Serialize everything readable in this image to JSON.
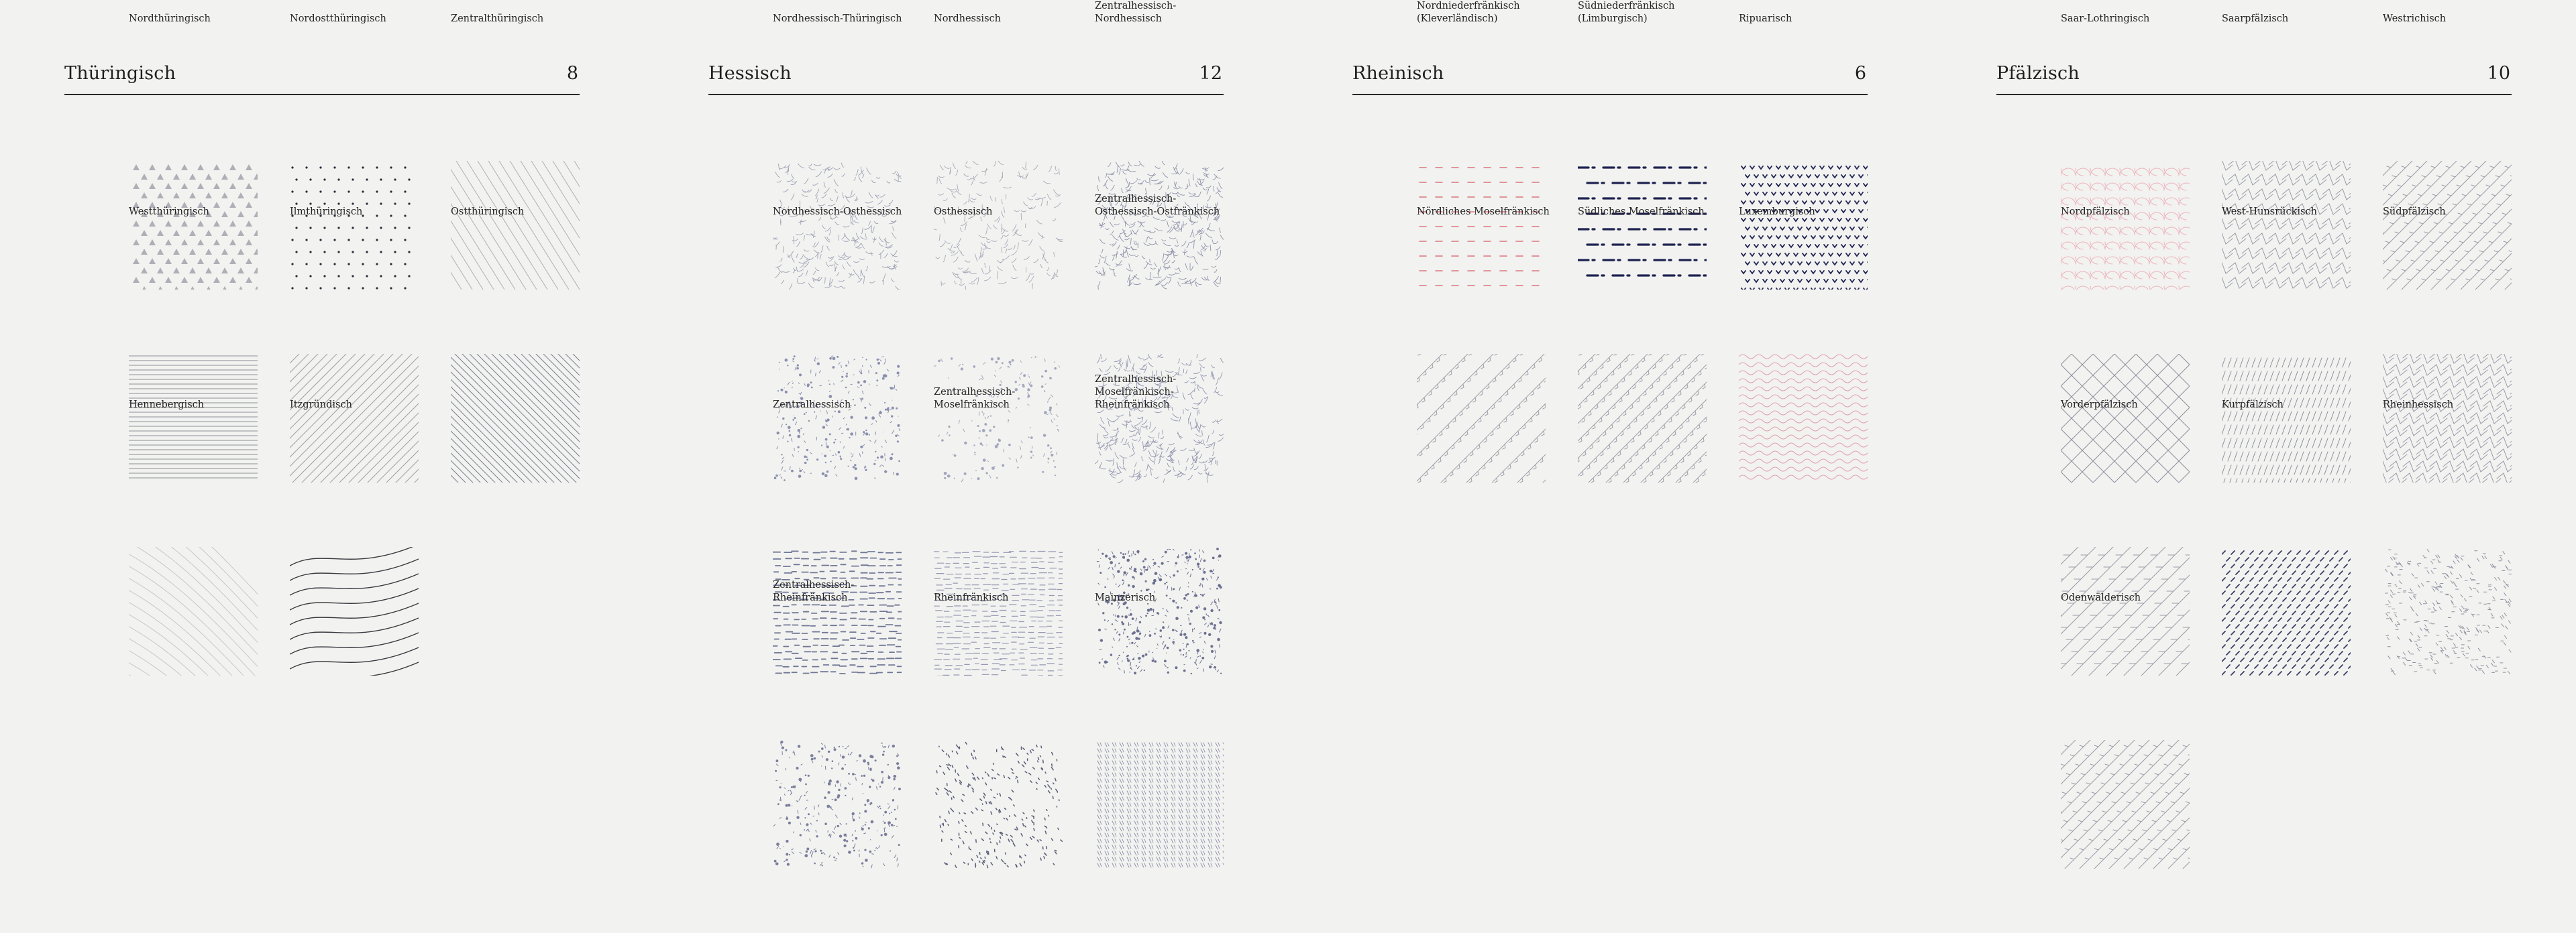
{
  "groups": [
    {
      "title": "Thüringisch",
      "count": "8",
      "items": [
        {
          "name": "Nordthüringisch",
          "pattern": "triangles",
          "color": "#aeb0b6"
        },
        {
          "name": "Nordostthüringisch",
          "pattern": "dots",
          "color": "#2a2a3a"
        },
        {
          "name": "Zentralthüringisch",
          "pattern": "diag-steep",
          "color": "#aeb0b6"
        },
        {
          "name": "Westthüringisch",
          "pattern": "hlines",
          "color": "#8e9096"
        },
        {
          "name": "Ilmthüringisch",
          "pattern": "diag-45",
          "color": "#9ea0a8"
        },
        {
          "name": "Ostthüringisch",
          "pattern": "diag-back",
          "color": "#7d8090"
        },
        {
          "name": "Hennebergisch",
          "pattern": "curves-faint",
          "color": "#c6c7cb"
        },
        {
          "name": "Itzgründisch",
          "pattern": "waves-big",
          "color": "#3a3a40"
        }
      ]
    },
    {
      "title": "Hessisch",
      "count": "12",
      "items": [
        {
          "name": "Nordhessisch-Thüringisch",
          "pattern": "scribble",
          "color": "#9ea2b4"
        },
        {
          "name": "Nordhessisch",
          "pattern": "scribble-light",
          "color": "#a6a9b8"
        },
        {
          "name": "Zentralhessisch-Nordhessisch",
          "pattern": "scribble-dense",
          "color": "#8e92aa"
        },
        {
          "name": "Nordhessisch-Osthessisch",
          "pattern": "blobs",
          "color": "#8a8fae"
        },
        {
          "name": "Osthessisch",
          "pattern": "blobs-light",
          "color": "#a2a6bc"
        },
        {
          "name": "Zentralhessisch-\nOsthessisch-Ostfränkisch",
          "pattern": "scribble-dense",
          "color": "#9296b0"
        },
        {
          "name": "Zentralhessisch",
          "pattern": "dashes",
          "color": "#707896"
        },
        {
          "name": "Zentralhessisch-\nMoselfränkisch",
          "pattern": "dashes-light",
          "color": "#9498b2"
        },
        {
          "name": "Zentralhessisch-\nMoselfränkisch-Rheinfränkisch",
          "pattern": "blobs-dense",
          "color": "#6c7090"
        },
        {
          "name": "Zentralhessisch-Rheinfränkisch",
          "pattern": "blobs",
          "color": "#7a7e9c"
        },
        {
          "name": "Rheinfränkisch",
          "pattern": "specks",
          "color": "#5a5e78"
        },
        {
          "name": "Mainzerisch",
          "pattern": "cols",
          "color": "#8a8ea8"
        }
      ]
    },
    {
      "title": "Rheinisch",
      "count": "6",
      "items": [
        {
          "name": "Nordniederfränkisch\n(Kleverländisch)",
          "pattern": "red-dashes",
          "color": "#d9767f"
        },
        {
          "name": "Südniederfränkisch\n(Limburgisch)",
          "pattern": "dash-dot",
          "color": "#1e2250"
        },
        {
          "name": "Ripuarisch",
          "pattern": "birds",
          "color": "#1e2250"
        },
        {
          "name": "Nördliches Moselfränkisch",
          "pattern": "zigzag-diag",
          "color": "#9ea0aa"
        },
        {
          "name": "Südliches Moselfränkisch",
          "pattern": "zigzag-diag-2",
          "color": "#9ea0aa"
        },
        {
          "name": "Luxemburgisch",
          "pattern": "red-waves",
          "color": "#e0a0aa"
        }
      ]
    },
    {
      "title": "Pfälzisch",
      "count": "10",
      "items": [
        {
          "name": "Saar-Lothringisch",
          "pattern": "pink-arcs",
          "color": "#ecb4bd"
        },
        {
          "name": "Saarpfälzisch",
          "pattern": "chevrons",
          "color": "#9a9ca8"
        },
        {
          "name": "Westrichisch",
          "pattern": "zig-steep",
          "color": "#9a9ca8"
        },
        {
          "name": "Nordpfälzisch",
          "pattern": "herring",
          "color": "#8e909c"
        },
        {
          "name": "West-Hunsrückisch",
          "pattern": "slash-bars",
          "color": "#8e909c"
        },
        {
          "name": "Südpfälzisch",
          "pattern": "chevrons-2",
          "color": "#9a9ca8"
        },
        {
          "name": "Vorderpfälzisch",
          "pattern": "zig-big",
          "color": "#9a9ca8"
        },
        {
          "name": "Kurpfälzisch",
          "pattern": "navy-dashes",
          "color": "#3a3e64"
        },
        {
          "name": "Rheinhessisch",
          "pattern": "mix",
          "color": "#8e90a0"
        },
        {
          "name": "Odenwälderisch",
          "pattern": "zig-steep",
          "color": "#9a9ca8"
        }
      ]
    }
  ]
}
